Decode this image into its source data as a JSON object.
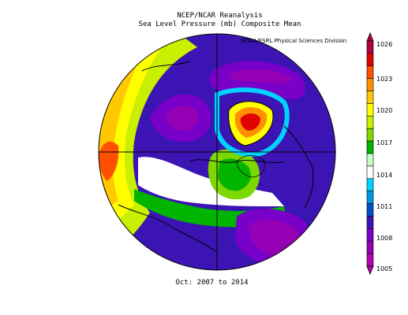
{
  "header": {
    "title_line1": "NCEP/NCAR Reanalysis",
    "title_line2": "Sea Level Pressure (mb) Composite Mean",
    "credit": "NOAA/ESRL Physical Sciences Division"
  },
  "footer": {
    "period": "Oct: 2007 to 2014"
  },
  "colorbar": {
    "labels": [
      "1026",
      "1023",
      "1020",
      "1017",
      "1014",
      "1011",
      "1008",
      "1005"
    ],
    "colors": [
      "#b4003c",
      "#e00000",
      "#ff5000",
      "#ff9000",
      "#ffc800",
      "#ffff00",
      "#c8f000",
      "#7dd800",
      "#00b400",
      "#c8ffc8",
      "#ffffff",
      "#00d2ff",
      "#0096e6",
      "#0050c8",
      "#3c14b4",
      "#7800c8",
      "#9600b4",
      "#b400b4"
    ]
  },
  "map": {
    "projection": "polar stereographic, North Pole",
    "field": "sea level pressure composite mean",
    "palette": {
      "very_low": "#9600b4",
      "low": "#3c14b4",
      "below_normal": "#0050c8",
      "near_normal_low": "#00d2ff",
      "normal": "#ffffff",
      "above_normal": "#00b400",
      "high": "#ffff00",
      "very_high": "#e00000"
    }
  }
}
